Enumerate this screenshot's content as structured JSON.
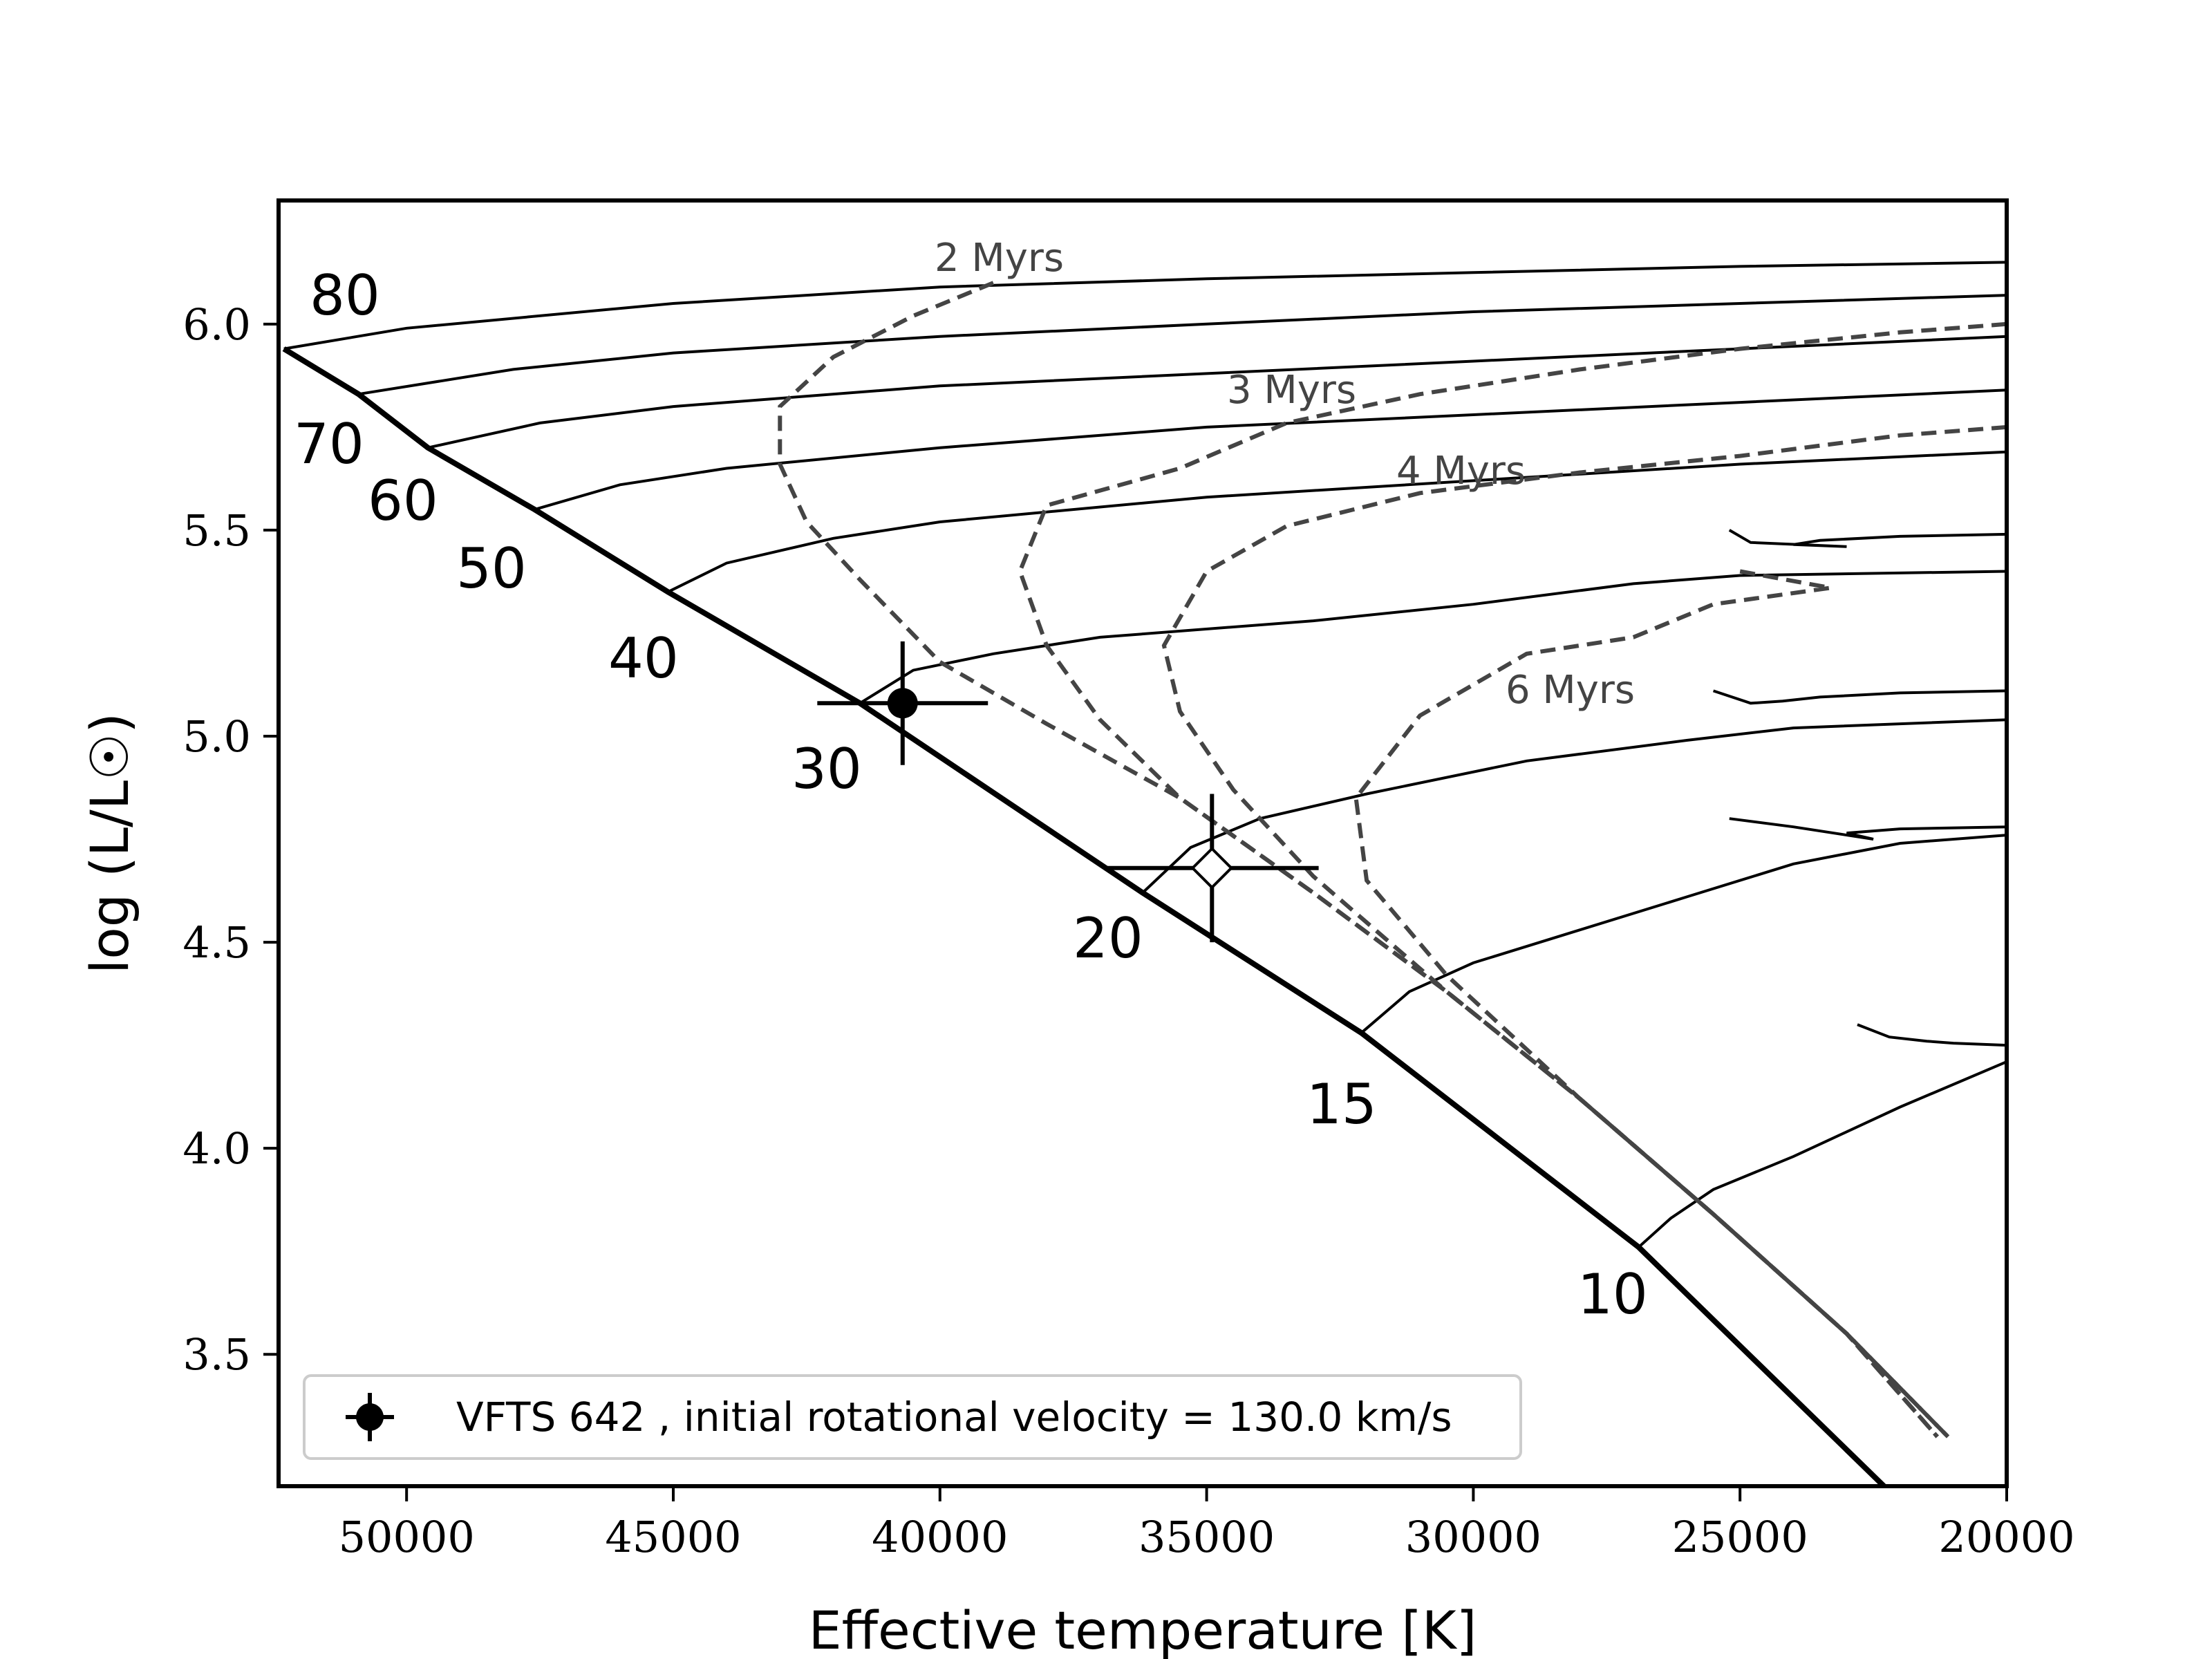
{
  "chart_data": {
    "type": "line",
    "title": "",
    "xlabel": "Effective temperature [K]",
    "ylabel": "log (L/L☉)",
    "xlim": [
      52400,
      20000
    ],
    "ylim": [
      3.18,
      6.3
    ],
    "x_ticks": [
      50000,
      45000,
      40000,
      35000,
      30000,
      25000,
      20000
    ],
    "y_ticks": [
      3.5,
      4.0,
      4.5,
      5.0,
      5.5,
      6.0
    ],
    "x_tick_labels": [
      "50000",
      "45000",
      "40000",
      "35000",
      "30000",
      "25000",
      "20000"
    ],
    "y_tick_labels": [
      "3.5",
      "4.0",
      "4.5",
      "5.0",
      "5.5",
      "6.0"
    ],
    "zams": [
      [
        52300,
        5.94
      ],
      [
        50900,
        5.83
      ],
      [
        49600,
        5.7
      ],
      [
        47600,
        5.55
      ],
      [
        45100,
        5.35
      ],
      [
        41500,
        5.08
      ],
      [
        36200,
        4.62
      ],
      [
        32100,
        4.28
      ],
      [
        26900,
        3.76
      ],
      [
        22300,
        3.18
      ]
    ],
    "tracks": [
      {
        "mass": "80",
        "label": "80",
        "points": [
          [
            52300,
            5.94
          ],
          [
            50000,
            5.99
          ],
          [
            45000,
            6.05
          ],
          [
            40000,
            6.09
          ],
          [
            35000,
            6.11
          ],
          [
            30000,
            6.125
          ],
          [
            25000,
            6.14
          ],
          [
            20000,
            6.15
          ]
        ]
      },
      {
        "mass": "70",
        "label": "70",
        "points": [
          [
            50900,
            5.83
          ],
          [
            48000,
            5.89
          ],
          [
            45000,
            5.93
          ],
          [
            40000,
            5.97
          ],
          [
            35000,
            6.0
          ],
          [
            30000,
            6.03
          ],
          [
            25000,
            6.05
          ],
          [
            20000,
            6.07
          ]
        ]
      },
      {
        "mass": "60",
        "label": "60",
        "points": [
          [
            49600,
            5.7
          ],
          [
            47500,
            5.76
          ],
          [
            45000,
            5.8
          ],
          [
            40000,
            5.85
          ],
          [
            35000,
            5.88
          ],
          [
            30000,
            5.91
          ],
          [
            25000,
            5.94
          ],
          [
            20000,
            5.97
          ]
        ]
      },
      {
        "mass": "50",
        "label": "50",
        "points": [
          [
            47600,
            5.55
          ],
          [
            46000,
            5.61
          ],
          [
            44000,
            5.65
          ],
          [
            40000,
            5.7
          ],
          [
            35000,
            5.75
          ],
          [
            30000,
            5.78
          ],
          [
            25000,
            5.81
          ],
          [
            20000,
            5.84
          ]
        ]
      },
      {
        "mass": "40",
        "label": "40",
        "points": [
          [
            45100,
            5.35
          ],
          [
            44000,
            5.42
          ],
          [
            42000,
            5.48
          ],
          [
            40000,
            5.52
          ],
          [
            35000,
            5.58
          ],
          [
            30000,
            5.62
          ],
          [
            25000,
            5.66
          ],
          [
            20000,
            5.69
          ]
        ]
      },
      {
        "mass": "30",
        "label": "30",
        "points": [
          [
            41500,
            5.08
          ],
          [
            40500,
            5.16
          ],
          [
            39000,
            5.2
          ],
          [
            37000,
            5.24
          ],
          [
            33000,
            5.28
          ],
          [
            30000,
            5.32
          ],
          [
            27000,
            5.37
          ],
          [
            25000,
            5.39
          ],
          [
            20000,
            5.4
          ]
        ]
      },
      {
        "mass": "20",
        "label": "20",
        "points": [
          [
            36200,
            4.62
          ],
          [
            35300,
            4.73
          ],
          [
            34000,
            4.8
          ],
          [
            32000,
            4.86
          ],
          [
            29000,
            4.94
          ],
          [
            26000,
            4.99
          ],
          [
            24000,
            5.02
          ],
          [
            20000,
            5.04
          ]
        ]
      },
      {
        "mass": "15",
        "label": "15",
        "points": [
          [
            32100,
            4.28
          ],
          [
            31200,
            4.38
          ],
          [
            30000,
            4.45
          ],
          [
            28000,
            4.53
          ],
          [
            26000,
            4.61
          ],
          [
            24000,
            4.69
          ],
          [
            22000,
            4.74
          ],
          [
            20000,
            4.76
          ]
        ]
      },
      {
        "mass": "10",
        "label": "10",
        "points": [
          [
            26900,
            3.76
          ],
          [
            26300,
            3.83
          ],
          [
            25500,
            3.9
          ],
          [
            24000,
            3.98
          ],
          [
            22000,
            4.1
          ],
          [
            20000,
            4.21
          ]
        ]
      }
    ],
    "track_hooks": [
      {
        "mass": "30",
        "points": [
          [
            20000,
            5.49
          ],
          [
            22000,
            5.485
          ],
          [
            23500,
            5.475
          ],
          [
            24000,
            5.465
          ],
          [
            23000,
            5.46
          ],
          [
            24800,
            5.47
          ],
          [
            25200,
            5.5
          ]
        ]
      },
      {
        "mass": "20",
        "points": [
          [
            20000,
            5.11
          ],
          [
            22000,
            5.105
          ],
          [
            23500,
            5.095
          ],
          [
            24200,
            5.085
          ],
          [
            24800,
            5.08
          ],
          [
            25500,
            5.11
          ]
        ]
      },
      {
        "mass": "15",
        "points": [
          [
            20000,
            4.78
          ],
          [
            22000,
            4.775
          ],
          [
            23000,
            4.765
          ],
          [
            22500,
            4.75
          ],
          [
            24000,
            4.78
          ],
          [
            25200,
            4.8
          ]
        ]
      },
      {
        "mass": "10",
        "points": [
          [
            20000,
            4.25
          ],
          [
            21000,
            4.255
          ],
          [
            21500,
            4.26
          ],
          [
            22200,
            4.27
          ],
          [
            22800,
            4.3
          ]
        ]
      }
    ],
    "isochrones": [
      {
        "name": "2 Myrs",
        "label": "2 Myrs",
        "points": [
          [
            39000,
            6.1
          ],
          [
            40500,
            6.02
          ],
          [
            42000,
            5.92
          ],
          [
            43000,
            5.8
          ],
          [
            43000,
            5.66
          ],
          [
            42500,
            5.52
          ],
          [
            41500,
            5.38
          ],
          [
            40000,
            5.18
          ],
          [
            38000,
            5.03
          ],
          [
            35500,
            4.85
          ],
          [
            33000,
            4.62
          ],
          [
            30500,
            4.38
          ],
          [
            28000,
            4.12
          ],
          [
            25500,
            3.84
          ],
          [
            23000,
            3.55
          ],
          [
            21100,
            3.3
          ]
        ]
      },
      {
        "name": "3 Myrs",
        "label": "3 Myrs",
        "points": [
          [
            20000,
            6.0
          ],
          [
            22000,
            5.98
          ],
          [
            25000,
            5.94
          ],
          [
            28000,
            5.89
          ],
          [
            31000,
            5.83
          ],
          [
            33500,
            5.76
          ],
          [
            35500,
            5.65
          ],
          [
            38000,
            5.56
          ],
          [
            38500,
            5.4
          ],
          [
            38000,
            5.22
          ],
          [
            37000,
            5.04
          ],
          [
            35500,
            4.85
          ],
          [
            33000,
            4.62
          ],
          [
            30500,
            4.38
          ],
          [
            28000,
            4.12
          ],
          [
            25500,
            3.84
          ],
          [
            23000,
            3.55
          ],
          [
            21300,
            3.3
          ]
        ]
      },
      {
        "name": "4 Myrs",
        "label": "4 Myrs",
        "points": [
          [
            20000,
            5.75
          ],
          [
            22000,
            5.73
          ],
          [
            25000,
            5.68
          ],
          [
            28000,
            5.64
          ],
          [
            31000,
            5.59
          ],
          [
            33500,
            5.51
          ],
          [
            35000,
            5.4
          ],
          [
            35800,
            5.22
          ],
          [
            35500,
            5.06
          ],
          [
            34500,
            4.87
          ],
          [
            33000,
            4.66
          ],
          [
            30500,
            4.38
          ],
          [
            28000,
            4.12
          ],
          [
            25500,
            3.84
          ],
          [
            23000,
            3.55
          ],
          [
            21300,
            3.3
          ]
        ]
      },
      {
        "name": "6 Myrs",
        "label": "6 Myrs",
        "points": [
          [
            25000,
            5.4
          ],
          [
            23300,
            5.36
          ],
          [
            25500,
            5.32
          ],
          [
            27000,
            5.24
          ],
          [
            29000,
            5.2
          ],
          [
            31000,
            5.05
          ],
          [
            32200,
            4.85
          ],
          [
            32000,
            4.65
          ],
          [
            30500,
            4.42
          ],
          [
            28000,
            4.12
          ],
          [
            25500,
            3.84
          ],
          [
            23000,
            3.55
          ],
          [
            21100,
            3.3
          ]
        ]
      }
    ],
    "stars": [
      {
        "name": "VFTS 642",
        "x": 40700,
        "y": 5.08,
        "xerr": 1600,
        "yerr": 0.15,
        "marker": "filled-circle"
      },
      {
        "name": "",
        "x": 34900,
        "y": 4.68,
        "xerr": 2000,
        "yerr": 0.18,
        "marker": "open-diamond"
      }
    ],
    "mass_labels": [
      "80",
      "70",
      "60",
      "50",
      "40",
      "30",
      "20",
      "15",
      "10"
    ],
    "legend": {
      "position": "lower-left",
      "entries": [
        "VFTS 642 , initial rotational velocity = 130.0 km/s"
      ]
    }
  }
}
